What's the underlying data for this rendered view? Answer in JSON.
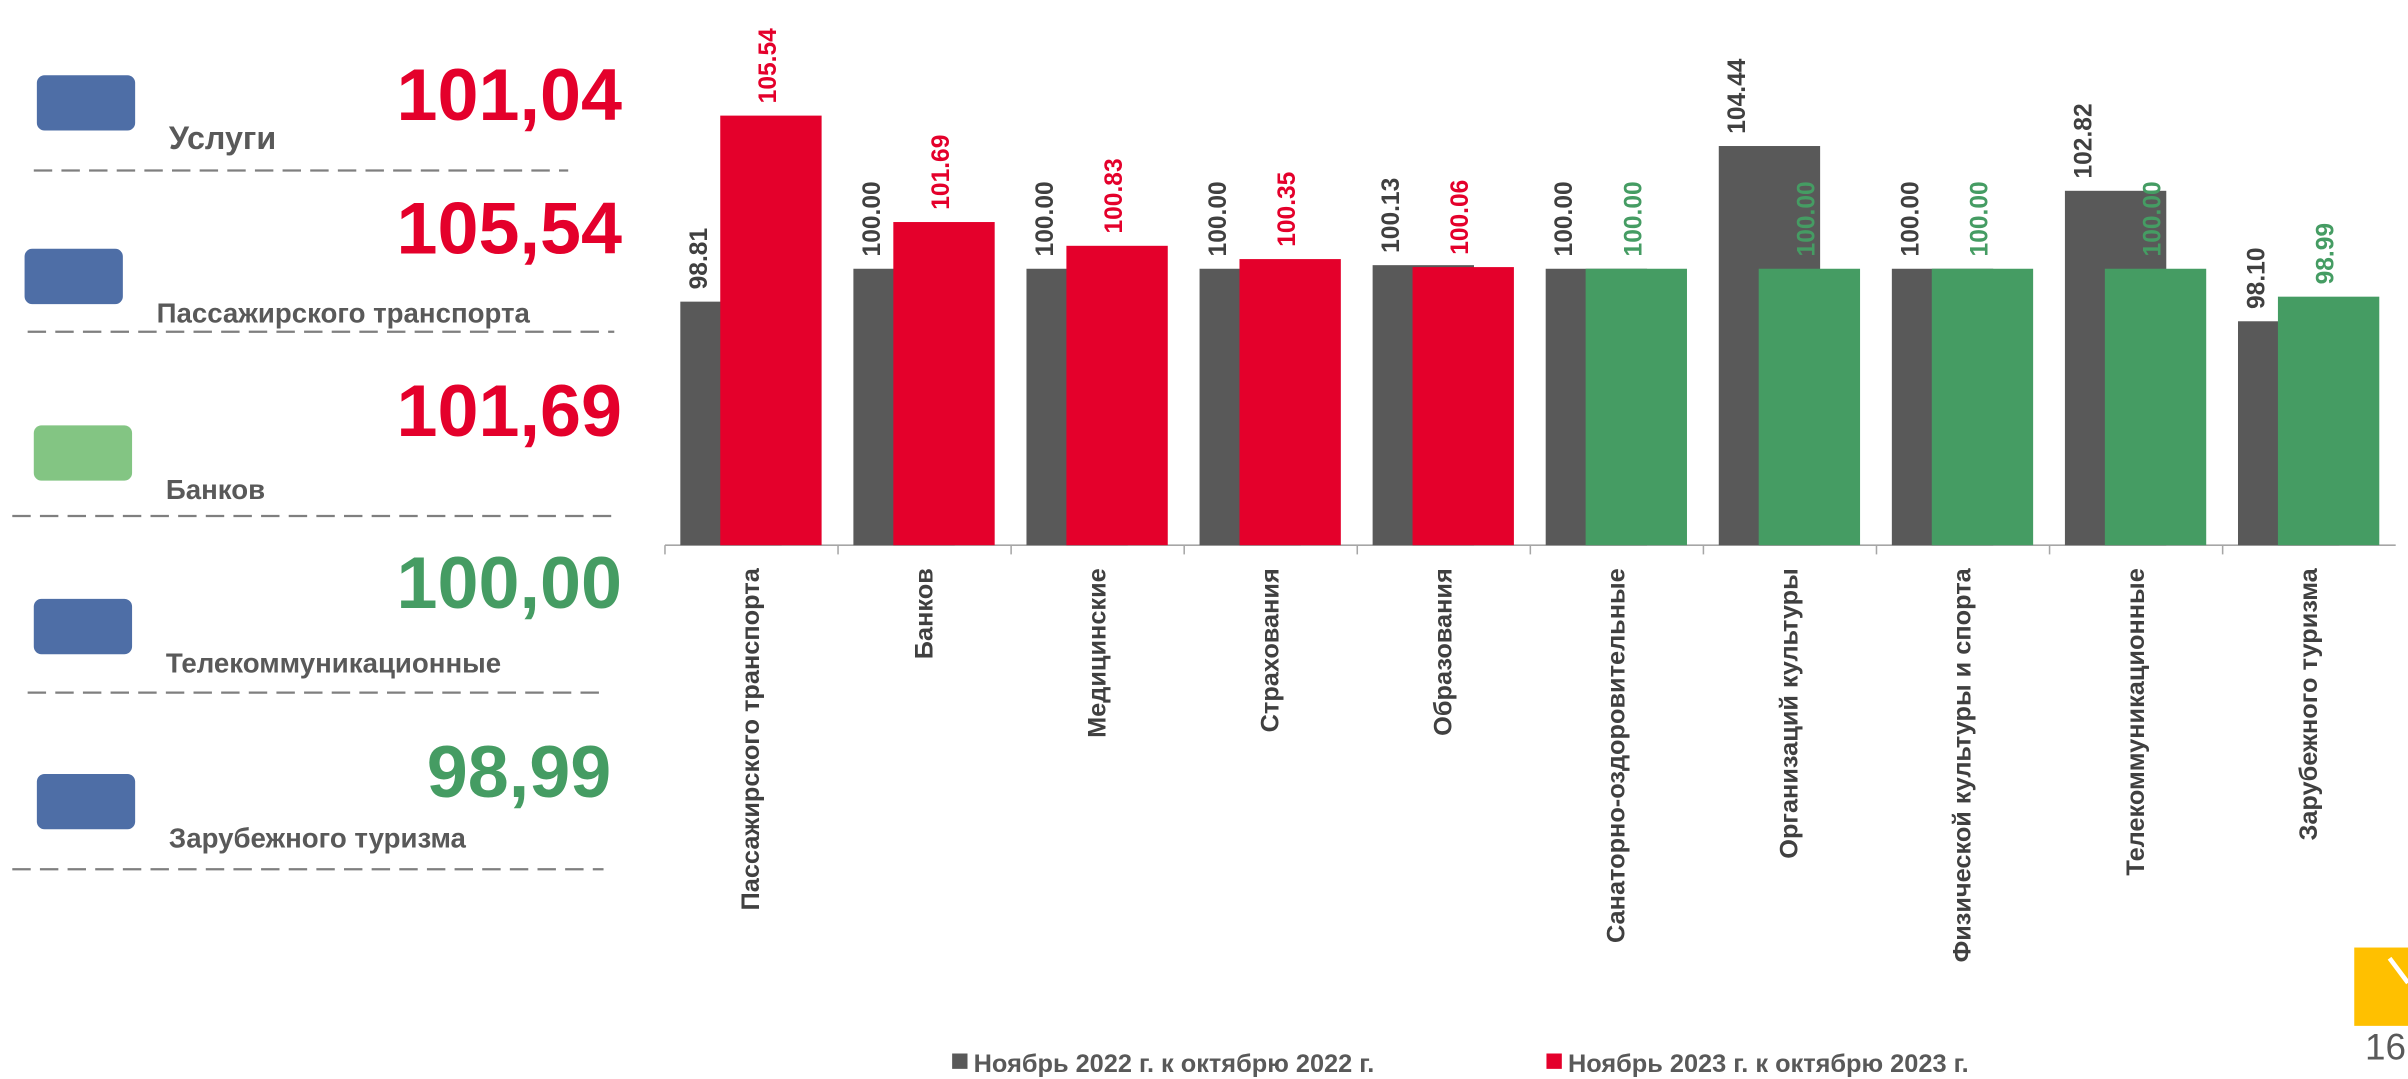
{
  "panel": [
    {
      "label": "Услуги",
      "value": "101,04",
      "color": "#e4002b"
    },
    {
      "label": "Пассажирского транспорта",
      "value": "105,54",
      "color": "#e4002b"
    },
    {
      "label": "Банков",
      "value": "101,69",
      "color": "#e4002b"
    },
    {
      "label": "Телекоммуникационные",
      "value": "100,00",
      "color": "#459c63"
    },
    {
      "label": "Зарубежного туризма",
      "value": "98,99",
      "color": "#459c63"
    }
  ],
  "page_number": "16",
  "chart_data": {
    "type": "bar",
    "categories": [
      "Пассажирского транспорта",
      "Банков",
      "Медицинские",
      "Страхования",
      "Образования",
      "Санаторно-оздоровительные",
      "Организаций культуры",
      "Физической культуры и спорта",
      "Телекоммуникационные",
      "Зарубежного туризма"
    ],
    "series": [
      {
        "name": "Ноябрь 2022 г. к октябрю 2022 г.",
        "color": "#595959",
        "values": [
          98.81,
          100,
          100,
          100,
          100.13,
          100,
          104.44,
          100,
          102.82,
          98.1
        ],
        "value_labels": [
          "98.81",
          "100.00",
          "100.00",
          "100.00",
          "100.13",
          "100.00",
          "104.44",
          "100.00",
          "102.82",
          "98.10"
        ]
      },
      {
        "name": "Ноябрь 2023 г. к октябрю 2023 г.",
        "color": "#e4002b",
        "colors": [
          "#e4002b",
          "#e4002b",
          "#e4002b",
          "#e4002b",
          "#e4002b",
          "#459c63",
          "#459c63",
          "#459c63",
          "#459c63",
          "#459c63"
        ],
        "values": [
          105.54,
          101.69,
          100.83,
          100.35,
          100.06,
          100,
          100,
          100,
          100,
          98.99
        ],
        "value_labels": [
          "105.54",
          "101.69",
          "100.83",
          "100.35",
          "100.06",
          "100.00",
          "100.00",
          "100.00",
          "100.00",
          "98.99"
        ]
      }
    ],
    "ylim": [
      90,
      106
    ]
  }
}
